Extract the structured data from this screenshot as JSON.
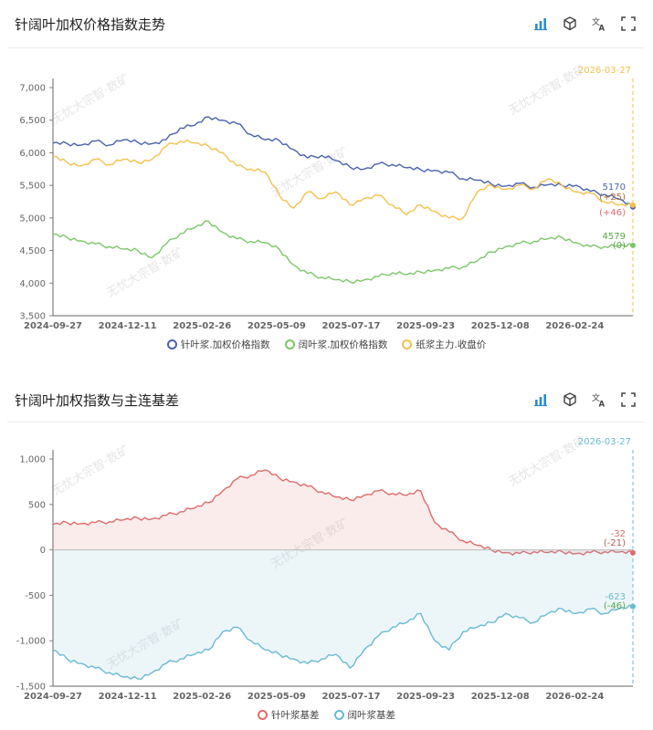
{
  "colors": {
    "needle": "#4a63ad",
    "broad": "#7cc66a",
    "pulp": "#f2c14e",
    "date_line_top": "#f2c14e",
    "basis_needle": "#e06b6b",
    "basis_broad": "#6bbad3",
    "toolbar": "#2c8ad1"
  },
  "toolbar_icons": [
    "bar-chart-icon",
    "cube-icon",
    "translate-icon",
    "fullscreen-icon"
  ],
  "watermark": "无忧大宗智·数矿",
  "panel1": {
    "title": "针阔叶加权价格指数走势",
    "cursor_date": "2026-03-27",
    "end_labels": [
      {
        "value": "5170",
        "color": "#4a63ad"
      },
      {
        "value": "(+25)",
        "color": "#b06d3a"
      },
      {
        "value": "(+46)",
        "color": "#e06b6b"
      },
      {
        "value": "4579",
        "color": "#57a845"
      },
      {
        "value": "(0)",
        "color": "#57a845"
      }
    ]
  },
  "panel2": {
    "title": "针阔叶加权指数与主连基差",
    "cursor_date": "2026-03-27",
    "end_labels": [
      {
        "value": "-32",
        "color": "#e06b6b"
      },
      {
        "value": "(-21)",
        "color": "#b85a5a"
      },
      {
        "value": "-623",
        "color": "#6bbad3"
      },
      {
        "value": "(-46)",
        "color": "#57a845"
      }
    ]
  },
  "chart_data": [
    {
      "type": "line",
      "title": "针阔叶加权价格指数走势",
      "x_ticks": [
        "2024-09-27",
        "2024-12-11",
        "2025-02-26",
        "2025-05-09",
        "2025-07-17",
        "2025-09-23",
        "2025-12-08",
        "2026-02-24"
      ],
      "y_ticks": [
        "3,500",
        "4,000",
        "4,500",
        "5,000",
        "5,500",
        "6,000",
        "6,500",
        "7,000"
      ],
      "ylim": [
        3500,
        7000
      ],
      "legend": [
        "针叶浆.加权价格指数",
        "阔叶浆.加权价格指数",
        "纸浆主力.收盘价"
      ],
      "series": [
        {
          "name": "针叶浆.加权价格指数",
          "color": "#4a63ad",
          "values": [
            6150,
            6140,
            6120,
            6180,
            6120,
            6200,
            6160,
            6140,
            6200,
            6380,
            6420,
            6550,
            6500,
            6450,
            6280,
            6200,
            6190,
            6050,
            5920,
            5960,
            5880,
            5780,
            5750,
            5830,
            5820,
            5770,
            5740,
            5730,
            5700,
            5600,
            5580,
            5520,
            5490,
            5530,
            5470,
            5510,
            5500,
            5500,
            5410,
            5360,
            5290,
            5170
          ]
        },
        {
          "name": "阔叶浆.加权价格指数",
          "color": "#7cc66a",
          "values": [
            4750,
            4700,
            4650,
            4600,
            4560,
            4520,
            4500,
            4390,
            4600,
            4760,
            4850,
            4950,
            4780,
            4680,
            4640,
            4620,
            4520,
            4280,
            4150,
            4090,
            4050,
            4020,
            4050,
            4100,
            4160,
            4130,
            4170,
            4200,
            4230,
            4250,
            4340,
            4480,
            4560,
            4610,
            4640,
            4680,
            4700,
            4620,
            4560,
            4560,
            4570,
            4579
          ]
        },
        {
          "name": "纸浆主力.收盘价",
          "color": "#f2c14e",
          "values": [
            5950,
            5850,
            5800,
            5900,
            5820,
            5900,
            5850,
            5900,
            6100,
            6180,
            6150,
            6100,
            6000,
            5800,
            5750,
            5700,
            5350,
            5150,
            5400,
            5300,
            5400,
            5200,
            5300,
            5350,
            5200,
            5050,
            5200,
            5100,
            5000,
            5000,
            5400,
            5500,
            5440,
            5500,
            5450,
            5600,
            5500,
            5400,
            5380,
            5250,
            5200,
            5195
          ]
        }
      ]
    },
    {
      "type": "area",
      "title": "针阔叶加权指数与主连基差",
      "x_ticks": [
        "2024-09-27",
        "2024-12-11",
        "2025-02-26",
        "2025-05-09",
        "2025-07-17",
        "2025-09-23",
        "2025-12-08",
        "2026-02-24"
      ],
      "y_ticks": [
        "-1,500",
        "-1,000",
        "-500",
        "0",
        "500",
        "1,000"
      ],
      "ylim": [
        -1500,
        1000
      ],
      "legend": [
        "针叶浆基差",
        "阔叶浆基差"
      ],
      "series": [
        {
          "name": "针叶浆基差",
          "color": "#e06b6b",
          "values": [
            280,
            300,
            290,
            300,
            310,
            330,
            350,
            340,
            380,
            420,
            460,
            520,
            650,
            780,
            820,
            880,
            790,
            750,
            700,
            640,
            580,
            550,
            600,
            650,
            620,
            600,
            650,
            300,
            200,
            100,
            50,
            0,
            -30,
            -40,
            -20,
            -30,
            -20,
            -40,
            -30,
            -20,
            -25,
            -32
          ]
        },
        {
          "name": "阔叶浆基差",
          "color": "#6bbad3",
          "values": [
            -1100,
            -1200,
            -1250,
            -1300,
            -1350,
            -1400,
            -1420,
            -1350,
            -1250,
            -1200,
            -1150,
            -1100,
            -900,
            -850,
            -1000,
            -1100,
            -1150,
            -1200,
            -1250,
            -1200,
            -1150,
            -1300,
            -1100,
            -950,
            -850,
            -800,
            -700,
            -1000,
            -1100,
            -900,
            -850,
            -800,
            -700,
            -750,
            -800,
            -700,
            -650,
            -700,
            -650,
            -700,
            -650,
            -623
          ]
        }
      ]
    }
  ]
}
